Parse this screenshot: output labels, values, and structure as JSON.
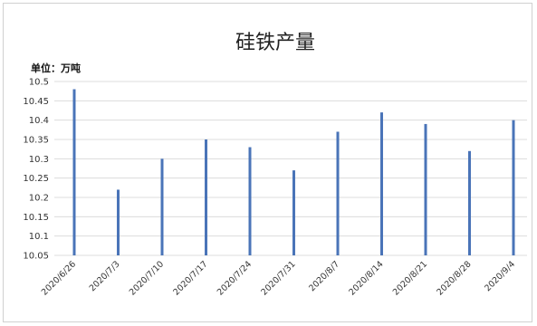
{
  "chart_data": {
    "type": "bar",
    "title": "硅铁产量",
    "unit_label": "单位：万吨",
    "xlabel": "",
    "ylabel": "",
    "categories": [
      "2020/6/26",
      "2020/7/3",
      "2020/7/10",
      "2020/7/17",
      "2020/7/24",
      "2020/7/31",
      "2020/8/7",
      "2020/8/14",
      "2020/8/21",
      "2020/8/28",
      "2020/9/4"
    ],
    "values": [
      10.48,
      10.22,
      10.3,
      10.35,
      10.33,
      10.27,
      10.37,
      10.42,
      10.39,
      10.32,
      10.4
    ],
    "ylim": [
      10.05,
      10.5
    ],
    "yticks": [
      "10.5",
      "10.45",
      "10.4",
      "10.35",
      "10.3",
      "10.25",
      "10.2",
      "10.15",
      "10.1",
      "10.05"
    ],
    "grid": true,
    "legend": "none",
    "bar_color": "#4a74b8",
    "grid_color": "#dcdcdc"
  }
}
